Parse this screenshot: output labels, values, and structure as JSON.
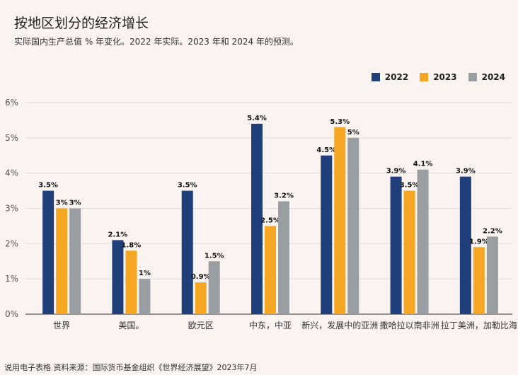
{
  "title": "按地区划分的经济增长",
  "subtitle": "实际国内生产总值 % 年变化。2022 年实际。2023 年和 2024 年的预测。",
  "footer": "说用电子表格 资料来源：国际货币基金组织《世界经济展望》2023年7月",
  "colors": {
    "2022": "#1f3f7a",
    "2023": "#f5a623",
    "2024": "#999ea3"
  },
  "chart_data": {
    "type": "bar",
    "title": "按地区划分的经济增长",
    "ylabel": "",
    "xlabel": "",
    "ylim": [
      0,
      6
    ],
    "yticks": [
      "0%",
      "1%",
      "2%",
      "3%",
      "4%",
      "5%",
      "6%"
    ],
    "legend_position": "top-right",
    "categories": [
      "世界",
      "美国。",
      "欧元区",
      "中东，中亚",
      "新兴，发展中的亚洲",
      "撒哈拉以南非洲",
      "拉丁美洲，加勒比海"
    ],
    "series": [
      {
        "name": "2022",
        "values": [
          3.5,
          2.1,
          3.5,
          5.4,
          4.5,
          3.9,
          3.9
        ],
        "labels": [
          "3.5%",
          "2.1%",
          "3.5%",
          "5.4%",
          "4.5%",
          "3.9%",
          "3.9%"
        ]
      },
      {
        "name": "2023",
        "values": [
          3.0,
          1.8,
          0.9,
          2.5,
          5.3,
          3.5,
          1.9
        ],
        "labels": [
          "3%",
          "1.8%",
          "0.9%",
          "2.5%",
          "5.3%",
          "3.5%",
          "1.9%"
        ]
      },
      {
        "name": "2024",
        "values": [
          3.0,
          1.0,
          1.5,
          3.2,
          5.0,
          4.1,
          2.2
        ],
        "labels": [
          "3%",
          "1%",
          "1.5%",
          "3.2%",
          "5%",
          "4.1%",
          "2.2%"
        ]
      }
    ]
  }
}
